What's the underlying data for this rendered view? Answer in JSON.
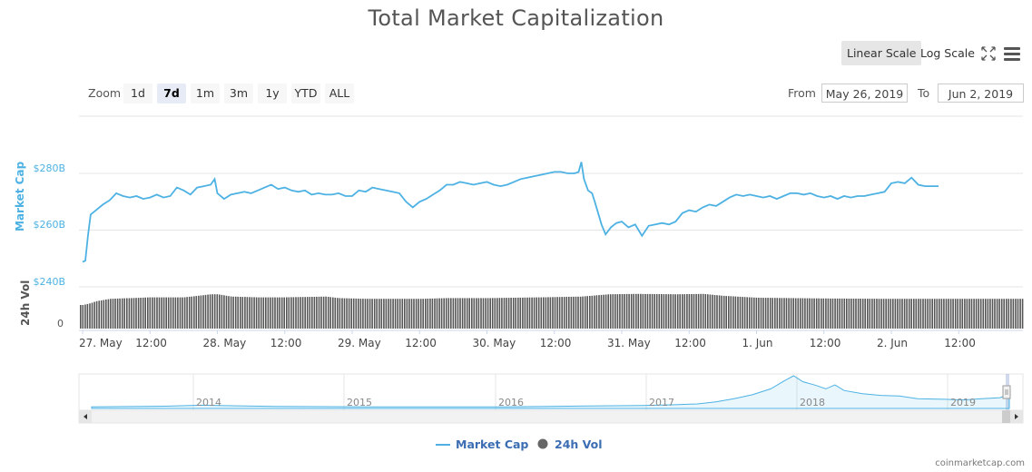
{
  "chart_data": {
    "type": "line",
    "title": "Total Market Capitalization",
    "scale_buttons": [
      "Linear Scale",
      "Log Scale"
    ],
    "active_scale": "Linear Scale",
    "zoom": {
      "label": "Zoom",
      "buttons": [
        "1d",
        "7d",
        "1m",
        "3m",
        "1y",
        "YTD",
        "ALL"
      ],
      "active": "7d"
    },
    "range": {
      "from_label": "From",
      "from": "May 26, 2019",
      "to_label": "To",
      "to": "Jun 2, 2019"
    },
    "market_cap_axis": {
      "title": "Market Cap",
      "ticks": [
        "$280B",
        "$260B",
        "$240B"
      ],
      "range": [
        240,
        290
      ],
      "unit": "B"
    },
    "volume_axis": {
      "title": "24h Vol",
      "ticks": [
        "0"
      ]
    },
    "x_ticks": [
      "27. May",
      "12:00",
      "28. May",
      "12:00",
      "29. May",
      "12:00",
      "30. May",
      "12:00",
      "31. May",
      "12:00",
      "1. Jun",
      "12:00",
      "2. Jun",
      "12:00"
    ],
    "series": [
      {
        "name": "Market Cap",
        "color": "#4db2e3",
        "points": [
          [
            0.0,
            248.8
          ],
          [
            0.02,
            249.2
          ],
          [
            0.04,
            258
          ],
          [
            0.06,
            265.5
          ],
          [
            0.1,
            267
          ],
          [
            0.15,
            269
          ],
          [
            0.2,
            270.5
          ],
          [
            0.25,
            273
          ],
          [
            0.3,
            272
          ],
          [
            0.35,
            271.5
          ],
          [
            0.4,
            272
          ],
          [
            0.45,
            271
          ],
          [
            0.5,
            271.5
          ],
          [
            0.55,
            272.5
          ],
          [
            0.6,
            271.5
          ],
          [
            0.65,
            272
          ],
          [
            0.7,
            275
          ],
          [
            0.75,
            274
          ],
          [
            0.8,
            272.5
          ],
          [
            0.85,
            275
          ],
          [
            0.9,
            275.5
          ],
          [
            0.95,
            276
          ],
          [
            0.98,
            278
          ],
          [
            1.0,
            273
          ],
          [
            1.05,
            271
          ],
          [
            1.1,
            272.5
          ],
          [
            1.15,
            273
          ],
          [
            1.2,
            273.5
          ],
          [
            1.25,
            273
          ],
          [
            1.3,
            274
          ],
          [
            1.35,
            275
          ],
          [
            1.4,
            276
          ],
          [
            1.45,
            274.5
          ],
          [
            1.5,
            275
          ],
          [
            1.55,
            274
          ],
          [
            1.6,
            273.5
          ],
          [
            1.65,
            274
          ],
          [
            1.7,
            272.5
          ],
          [
            1.75,
            273
          ],
          [
            1.8,
            272.5
          ],
          [
            1.85,
            272.5
          ],
          [
            1.9,
            273
          ],
          [
            1.95,
            272
          ],
          [
            2.0,
            272
          ],
          [
            2.05,
            274
          ],
          [
            2.1,
            273.5
          ],
          [
            2.15,
            275
          ],
          [
            2.2,
            274.5
          ],
          [
            2.25,
            274
          ],
          [
            2.3,
            273.5
          ],
          [
            2.35,
            273
          ],
          [
            2.4,
            270
          ],
          [
            2.45,
            268
          ],
          [
            2.5,
            270
          ],
          [
            2.55,
            271
          ],
          [
            2.6,
            272.5
          ],
          [
            2.65,
            274
          ],
          [
            2.7,
            276
          ],
          [
            2.75,
            276
          ],
          [
            2.8,
            277
          ],
          [
            2.85,
            276.5
          ],
          [
            2.9,
            276
          ],
          [
            2.95,
            276.5
          ],
          [
            3.0,
            277
          ],
          [
            3.05,
            276
          ],
          [
            3.1,
            275.5
          ],
          [
            3.15,
            276
          ],
          [
            3.2,
            277
          ],
          [
            3.25,
            278
          ],
          [
            3.3,
            278.5
          ],
          [
            3.35,
            279
          ],
          [
            3.4,
            279.5
          ],
          [
            3.45,
            280
          ],
          [
            3.5,
            280.5
          ],
          [
            3.55,
            280.5
          ],
          [
            3.6,
            280
          ],
          [
            3.65,
            280
          ],
          [
            3.68,
            280.5
          ],
          [
            3.7,
            284
          ],
          [
            3.72,
            278
          ],
          [
            3.75,
            274
          ],
          [
            3.78,
            273
          ],
          [
            3.8,
            270
          ],
          [
            3.85,
            262
          ],
          [
            3.88,
            258.5
          ],
          [
            3.92,
            261
          ],
          [
            3.96,
            262.5
          ],
          [
            4.0,
            263
          ],
          [
            4.05,
            261
          ],
          [
            4.1,
            262
          ],
          [
            4.15,
            258
          ],
          [
            4.2,
            261.5
          ],
          [
            4.25,
            262
          ],
          [
            4.3,
            262.5
          ],
          [
            4.35,
            262
          ],
          [
            4.4,
            263
          ],
          [
            4.45,
            266
          ],
          [
            4.5,
            267
          ],
          [
            4.55,
            266.5
          ],
          [
            4.6,
            268
          ],
          [
            4.65,
            269
          ],
          [
            4.7,
            268.5
          ],
          [
            4.75,
            270
          ],
          [
            4.8,
            271.5
          ],
          [
            4.85,
            272.5
          ],
          [
            4.9,
            272
          ],
          [
            4.95,
            272.5
          ],
          [
            5.0,
            272
          ],
          [
            5.05,
            271.5
          ],
          [
            5.1,
            272
          ],
          [
            5.15,
            271
          ],
          [
            5.2,
            272
          ],
          [
            5.25,
            273
          ],
          [
            5.3,
            273
          ],
          [
            5.35,
            272.5
          ],
          [
            5.4,
            273
          ],
          [
            5.45,
            272
          ],
          [
            5.5,
            271.5
          ],
          [
            5.55,
            272
          ],
          [
            5.6,
            271
          ],
          [
            5.65,
            272
          ],
          [
            5.7,
            271.5
          ],
          [
            5.75,
            272
          ],
          [
            5.8,
            272
          ],
          [
            5.85,
            272.5
          ],
          [
            5.9,
            273
          ],
          [
            5.95,
            273.5
          ],
          [
            6.0,
            276.5
          ],
          [
            6.05,
            277
          ],
          [
            6.1,
            276.5
          ],
          [
            6.15,
            278.5
          ],
          [
            6.2,
            276
          ],
          [
            6.25,
            275.5
          ],
          [
            6.3,
            275.5
          ],
          [
            6.35,
            275.5
          ]
        ]
      },
      {
        "name": "24h Vol",
        "color": "#555555",
        "bar_levels": [
          [
            0.0,
            0.62
          ],
          [
            0.05,
            0.66
          ],
          [
            0.1,
            0.72
          ],
          [
            0.2,
            0.78
          ],
          [
            0.35,
            0.8
          ],
          [
            0.5,
            0.82
          ],
          [
            0.75,
            0.82
          ],
          [
            0.95,
            0.9
          ],
          [
            1.0,
            0.9
          ],
          [
            1.1,
            0.84
          ],
          [
            1.3,
            0.82
          ],
          [
            1.5,
            0.82
          ],
          [
            1.8,
            0.84
          ],
          [
            1.9,
            0.8
          ],
          [
            2.1,
            0.78
          ],
          [
            2.5,
            0.78
          ],
          [
            2.7,
            0.8
          ],
          [
            3.0,
            0.8
          ],
          [
            3.4,
            0.82
          ],
          [
            3.7,
            0.84
          ],
          [
            3.9,
            0.9
          ],
          [
            4.1,
            0.91
          ],
          [
            4.4,
            0.9
          ],
          [
            4.6,
            0.91
          ],
          [
            4.75,
            0.86
          ],
          [
            5.0,
            0.81
          ],
          [
            5.5,
            0.79
          ],
          [
            6.0,
            0.78
          ],
          [
            6.35,
            0.78
          ]
        ]
      }
    ],
    "navigator": {
      "years": [
        "2014",
        "2015",
        "2016",
        "2017",
        "2018",
        "2019"
      ],
      "profile": [
        [
          0.0,
          0.05
        ],
        [
          0.08,
          0.07
        ],
        [
          0.12,
          0.1
        ],
        [
          0.2,
          0.06
        ],
        [
          0.3,
          0.05
        ],
        [
          0.45,
          0.05
        ],
        [
          0.52,
          0.07
        ],
        [
          0.6,
          0.09
        ],
        [
          0.64,
          0.12
        ],
        [
          0.66,
          0.14
        ],
        [
          0.68,
          0.2
        ],
        [
          0.7,
          0.3
        ],
        [
          0.72,
          0.42
        ],
        [
          0.74,
          0.6
        ],
        [
          0.755,
          0.85
        ],
        [
          0.765,
          1.0
        ],
        [
          0.775,
          0.82
        ],
        [
          0.79,
          0.7
        ],
        [
          0.8,
          0.6
        ],
        [
          0.81,
          0.72
        ],
        [
          0.82,
          0.55
        ],
        [
          0.84,
          0.45
        ],
        [
          0.86,
          0.4
        ],
        [
          0.88,
          0.38
        ],
        [
          0.9,
          0.3
        ],
        [
          0.93,
          0.28
        ],
        [
          0.95,
          0.26
        ],
        [
          0.97,
          0.3
        ],
        [
          0.99,
          0.33
        ],
        [
          1.0,
          0.45
        ]
      ]
    },
    "legend": [
      "Market Cap",
      "24h Vol"
    ],
    "credits": "coinmarketcap.com"
  }
}
